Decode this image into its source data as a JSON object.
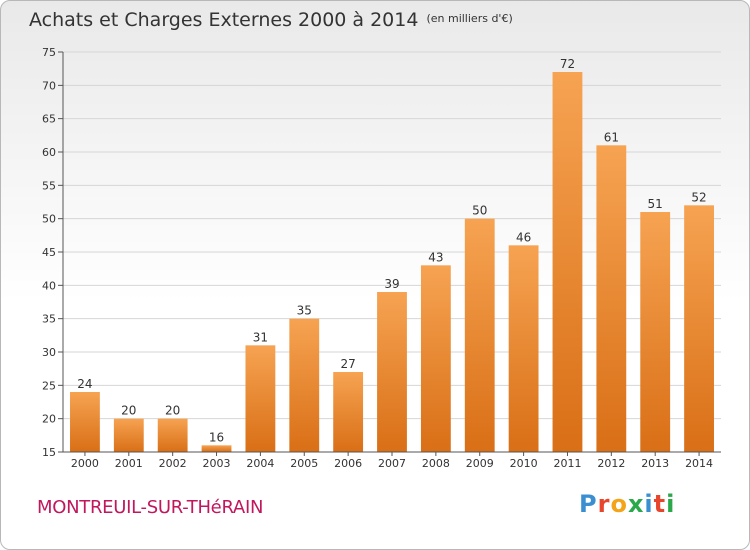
{
  "title": "Achats et Charges Externes 2000 à 2014",
  "unit": "(en milliers d'€)",
  "commune": "MONTREUIL-SUR-THéRAIN",
  "logo": {
    "letters": [
      "P",
      "r",
      "o",
      "x",
      "i",
      "t",
      "i"
    ],
    "colors": [
      "#3a8fd1",
      "#e8462c",
      "#f4a418",
      "#2aa84a",
      "#3a8fd1",
      "#e8462c",
      "#2aa84a"
    ]
  },
  "chart_data": {
    "type": "bar",
    "title": "Achats et Charges Externes 2000 à 2014",
    "categories": [
      "2000",
      "2001",
      "2002",
      "2003",
      "2004",
      "2005",
      "2006",
      "2007",
      "2008",
      "2009",
      "2010",
      "2011",
      "2012",
      "2013",
      "2014"
    ],
    "values": [
      24,
      20,
      20,
      16,
      31,
      35,
      27,
      39,
      43,
      50,
      46,
      72,
      61,
      51,
      52
    ],
    "ylim": [
      15,
      75
    ],
    "yticks": [
      15,
      20,
      25,
      30,
      35,
      40,
      45,
      50,
      55,
      60,
      65,
      70,
      75
    ],
    "grid": true,
    "bar_color": "#f39b3f"
  }
}
